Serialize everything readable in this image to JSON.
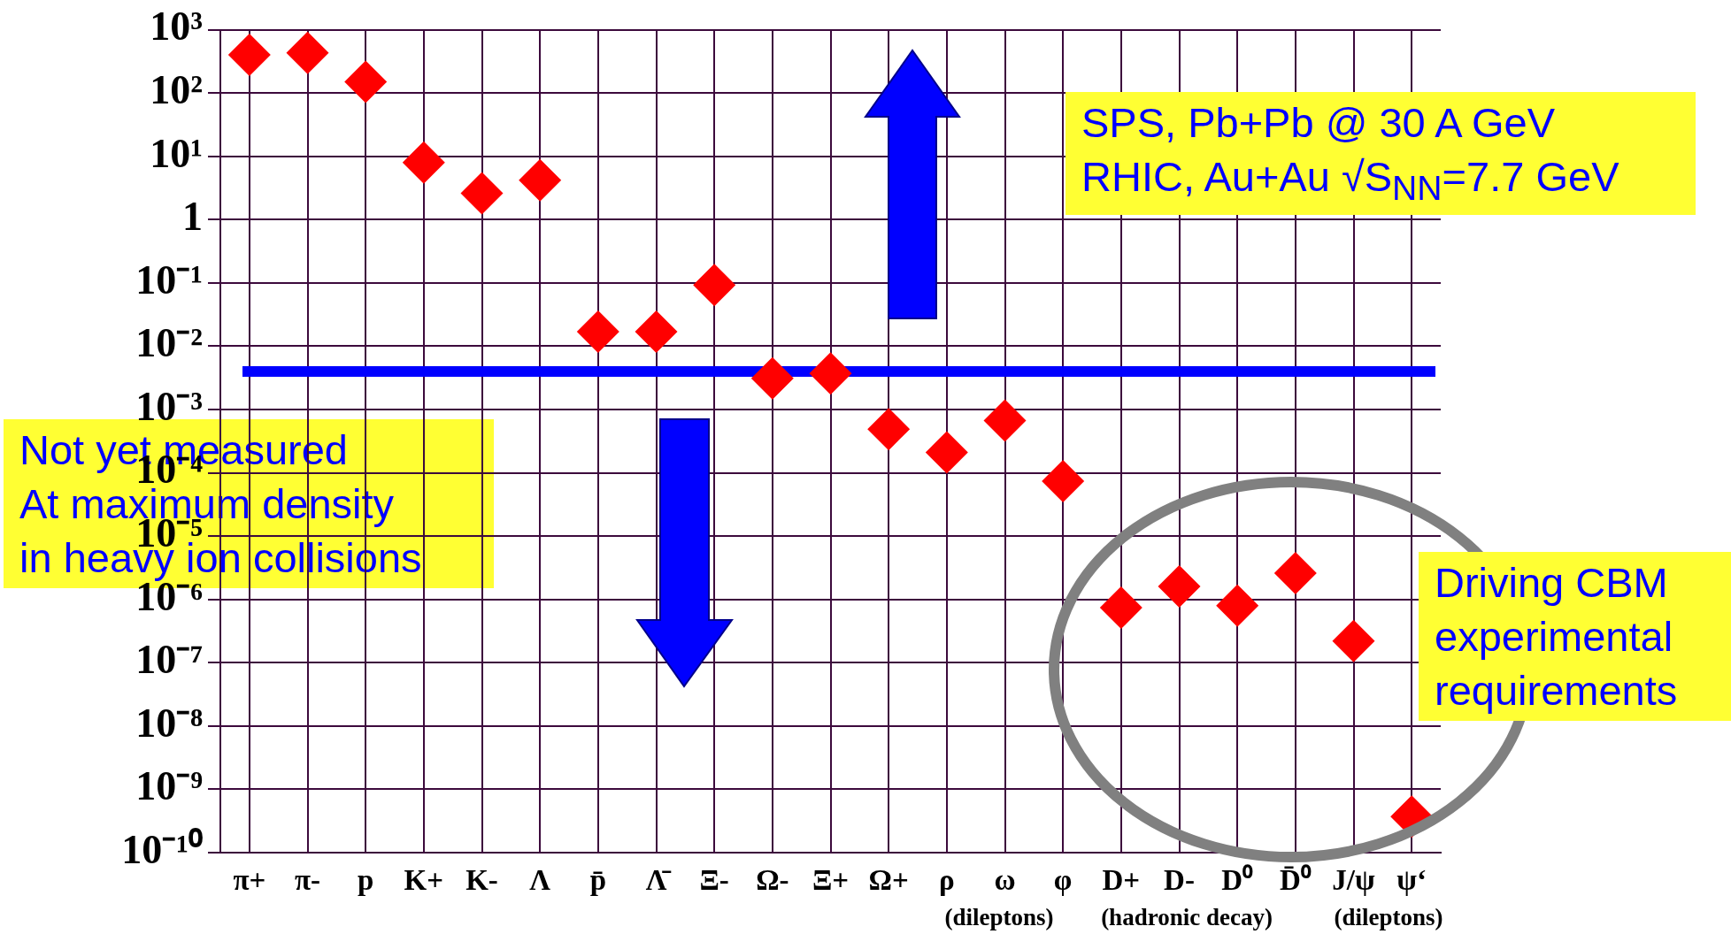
{
  "chart_data": {
    "type": "scatter",
    "categories": [
      "π+",
      "π-",
      "p",
      "K+",
      "K-",
      "Λ",
      "p̄",
      "Λ̄",
      "Ξ-",
      "Ω-",
      "Ξ+",
      "Ω+",
      "ρ",
      "ω",
      "φ",
      "D+",
      "D-",
      "D⁰",
      "D̄⁰",
      "J/ψ",
      "ψ‘"
    ],
    "series": [
      {
        "color": "#ff0000",
        "values": [
          400,
          430,
          150,
          8,
          2.6,
          4.2,
          0.017,
          0.017,
          0.093,
          0.0031,
          0.0037,
          0.00049,
          0.00021,
          0.00067,
          7.4e-05,
          7.4e-07,
          1.6e-06,
          8e-07,
          2.6e-06,
          2.2e-07,
          3.7e-10
        ]
      }
    ],
    "log": "y",
    "ylim": [
      1e-10,
      1000
    ],
    "yticks": [
      {
        "value": 1000,
        "label": "10³"
      },
      {
        "value": 100,
        "label": "10²"
      },
      {
        "value": 10,
        "label": "10¹"
      },
      1,
      {
        "value": 0.1,
        "label": "10⁻¹"
      },
      {
        "value": 0.01,
        "label": "10⁻²"
      },
      {
        "value": 0.001,
        "label": "10⁻³"
      },
      {
        "value": 0.0001,
        "label": "10⁻⁴"
      },
      {
        "value": 1e-05,
        "label": "10⁻⁵"
      },
      {
        "value": 1e-06,
        "label": "10⁻⁶"
      },
      {
        "value": 1e-07,
        "label": "10⁻⁷"
      },
      {
        "value": 1e-08,
        "label": "10⁻⁸"
      },
      {
        "value": 1e-09,
        "label": "10⁻⁹"
      },
      {
        "value": 1e-10,
        "label": "10⁻¹⁰"
      }
    ],
    "ref_lines": [
      {
        "axis": "y",
        "value": 0.004,
        "color": "#0000ff"
      }
    ],
    "annotations": [
      "SPS,  Pb+Pb @ 30 A GeV\nRHIC, Au+Au √S$_{NN}$=7.7 GeV",
      "Not yet measured\nAt maximum density\nin heavy ion collisions",
      "Driving CBM\nexperimental\nrequirements",
      "(dileptons)",
      "(hadronic decay)",
      "(dileptons)"
    ],
    "grid": true,
    "legend": false,
    "marker": "diamond"
  }
}
